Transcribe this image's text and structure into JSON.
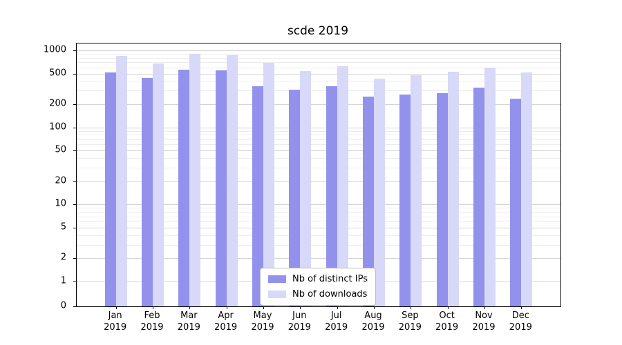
{
  "chart_data": {
    "type": "bar",
    "title": "scde 2019",
    "categories": [
      "Jan 2019",
      "Feb 2019",
      "Mar 2019",
      "Apr 2019",
      "May 2019",
      "Jun 2019",
      "Jul 2019",
      "Aug 2019",
      "Sep 2019",
      "Oct 2019",
      "Nov 2019",
      "Dec 2019"
    ],
    "series": [
      {
        "name": "Nb of distinct IPs",
        "color": "#9292ed",
        "values": [
          520,
          440,
          560,
          545,
          340,
          310,
          340,
          250,
          265,
          280,
          330,
          235
        ]
      },
      {
        "name": "Nb of downloads",
        "color": "#d8d8f8",
        "values": [
          850,
          680,
          900,
          860,
          690,
          540,
          620,
          430,
          480,
          530,
          600,
          520
        ]
      }
    ],
    "yscale": "symlog",
    "yticks": [
      0,
      1,
      2,
      5,
      10,
      20,
      50,
      100,
      200,
      500,
      1000
    ],
    "ylim": [
      0,
      1230
    ],
    "xlabel": "",
    "ylabel": "",
    "grid": "horizontal-major-and-minor",
    "legend_position": "lower center"
  }
}
